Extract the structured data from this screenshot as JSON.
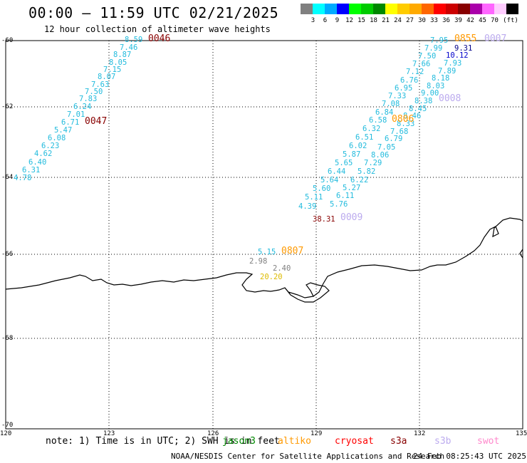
{
  "header": {
    "title": "00:00 – 11:59 UTC 02/21/2025",
    "subtitle": "12 hour collection of altimeter wave heights"
  },
  "legend": {
    "unit": "(ft)",
    "colors": [
      "#808080",
      "#00ffff",
      "#00aaff",
      "#0000ff",
      "#00ff00",
      "#00cc00",
      "#008800",
      "#ffff00",
      "#ffcc00",
      "#ffaa00",
      "#ff6600",
      "#ff0000",
      "#cc0000",
      "#880000",
      "#aa00aa",
      "#ff66ff",
      "#ffccff",
      "#000000"
    ],
    "labels": [
      "",
      "3",
      "6",
      "9",
      "12",
      "15",
      "18",
      "21",
      "24",
      "27",
      "30",
      "33",
      "36",
      "39",
      "42",
      "45",
      "70"
    ]
  },
  "axes": {
    "x_ticks": [
      "120",
      "123",
      "126",
      "129",
      "132",
      "135"
    ],
    "y_ticks": [
      "-60",
      "-62",
      "-64",
      "-66",
      "-68",
      "-70"
    ]
  },
  "labels": [
    {
      "t": "8.59",
      "c": "#22bbdd"
    },
    {
      "t": "7.46",
      "c": "#22bbdd"
    },
    {
      "t": "8.87",
      "c": "#22bbdd"
    },
    {
      "t": "8.05",
      "c": "#22bbdd"
    },
    {
      "t": "7.15",
      "c": "#22bbdd"
    },
    {
      "t": "8.07",
      "c": "#22bbdd"
    },
    {
      "t": "7.63",
      "c": "#22bbdd"
    },
    {
      "t": "7.50",
      "c": "#22bbdd"
    },
    {
      "t": "7.83",
      "c": "#22bbdd"
    },
    {
      "t": "6.24",
      "c": "#22bbdd"
    },
    {
      "t": "7.01",
      "c": "#22bbdd"
    },
    {
      "t": "6.71",
      "c": "#22bbdd"
    },
    {
      "t": "5.47",
      "c": "#22bbdd"
    },
    {
      "t": "6.08",
      "c": "#22bbdd"
    },
    {
      "t": "6.23",
      "c": "#22bbdd"
    },
    {
      "t": "4.62",
      "c": "#22bbdd"
    },
    {
      "t": "6.40",
      "c": "#22bbdd"
    },
    {
      "t": "6.31",
      "c": "#22bbdd"
    },
    {
      "t": "4.78",
      "c": "#22bbdd"
    },
    {
      "t": "0046",
      "c": "#880000"
    },
    {
      "t": "0047",
      "c": "#880000"
    },
    {
      "t": "7.95",
      "c": "#22bbdd"
    },
    {
      "t": "7.99",
      "c": "#22bbdd"
    },
    {
      "t": "7.50",
      "c": "#22bbdd"
    },
    {
      "t": "7.66",
      "c": "#22bbdd"
    },
    {
      "t": "7.12",
      "c": "#22bbdd"
    },
    {
      "t": "6.76",
      "c": "#22bbdd"
    },
    {
      "t": "6.95",
      "c": "#22bbdd"
    },
    {
      "t": "7.33",
      "c": "#22bbdd"
    },
    {
      "t": "7.08",
      "c": "#22bbdd"
    },
    {
      "t": "6.84",
      "c": "#22bbdd"
    },
    {
      "t": "6.58",
      "c": "#22bbdd"
    },
    {
      "t": "6.32",
      "c": "#22bbdd"
    },
    {
      "t": "6.51",
      "c": "#22bbdd"
    },
    {
      "t": "6.02",
      "c": "#22bbdd"
    },
    {
      "t": "5.87",
      "c": "#22bbdd"
    },
    {
      "t": "5.65",
      "c": "#22bbdd"
    },
    {
      "t": "6.44",
      "c": "#22bbdd"
    },
    {
      "t": "5.64",
      "c": "#22bbdd"
    },
    {
      "t": "5.60",
      "c": "#22bbdd"
    },
    {
      "t": "5.11",
      "c": "#22bbdd"
    },
    {
      "t": "4.39",
      "c": "#22bbdd"
    },
    {
      "t": "9.31",
      "c": "#000088"
    },
    {
      "t": "10.12",
      "c": "#0000cc"
    },
    {
      "t": "7.93",
      "c": "#22bbdd"
    },
    {
      "t": "7.89",
      "c": "#22bbdd"
    },
    {
      "t": "8.18",
      "c": "#22bbdd"
    },
    {
      "t": "8.03",
      "c": "#22bbdd"
    },
    {
      "t": "9.00",
      "c": "#22bbdd"
    },
    {
      "t": "8.38",
      "c": "#22bbdd"
    },
    {
      "t": "8.45",
      "c": "#22bbdd"
    },
    {
      "t": "8.46",
      "c": "#22bbdd"
    },
    {
      "t": "8.33",
      "c": "#22bbdd"
    },
    {
      "t": "7.68",
      "c": "#22bbdd"
    },
    {
      "t": "6.79",
      "c": "#22bbdd"
    },
    {
      "t": "7.05",
      "c": "#22bbdd"
    },
    {
      "t": "8.06",
      "c": "#22bbdd"
    },
    {
      "t": "7.29",
      "c": "#22bbdd"
    },
    {
      "t": "5.82",
      "c": "#22bbdd"
    },
    {
      "t": "6.22",
      "c": "#22bbdd"
    },
    {
      "t": "5.27",
      "c": "#22bbdd"
    },
    {
      "t": "6.11",
      "c": "#22bbdd"
    },
    {
      "t": "5.76",
      "c": "#22bbdd"
    },
    {
      "t": "0855",
      "c": "#ff9900"
    },
    {
      "t": "0007",
      "c": "#bbaaee"
    },
    {
      "t": "0008",
      "c": "#bbaaee"
    },
    {
      "t": "0806",
      "c": "#ff9900"
    },
    {
      "t": "0009",
      "c": "#bbaaee"
    },
    {
      "t": "38.31",
      "c": "#880000"
    },
    {
      "t": "5.15",
      "c": "#22bbdd"
    },
    {
      "t": "0807",
      "c": "#ff9900"
    },
    {
      "t": "2.98",
      "c": "#808080"
    },
    {
      "t": "2.40",
      "c": "#808080"
    },
    {
      "t": "20.20",
      "c": "#ddbb00"
    }
  ],
  "footer": {
    "note": "note: 1) Time is in UTC; 2) SWH is in feet",
    "satellites": [
      {
        "name": "jason3",
        "c": "#008800"
      },
      {
        "name": "altiko",
        "c": "#ff9900"
      },
      {
        "name": "cryosat",
        "c": "#ff0000"
      },
      {
        "name": "s3a",
        "c": "#880000"
      },
      {
        "name": "s3b",
        "c": "#bbaaee"
      },
      {
        "name": "swot",
        "c": "#ff88cc"
      }
    ],
    "credit": "NOAA/NESDIS Center for Satellite Applications and Research",
    "timestamp": "24 Feb 08:25:43 UTC 2025"
  }
}
